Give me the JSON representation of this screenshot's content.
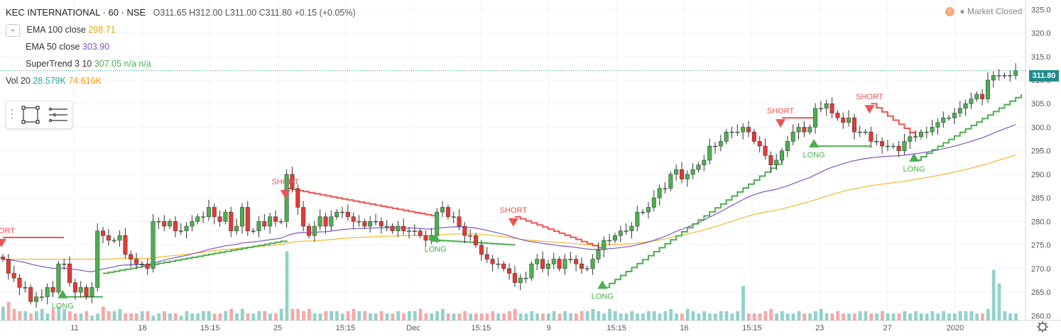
{
  "header": {
    "symbol": "KEC INTERNATIONAL · 60 · NSE",
    "ohlc": {
      "open": "O311.65",
      "high": "H312.00",
      "low": "L311.00",
      "close": "C311.80",
      "change": "+0.15 (+0.05%)"
    }
  },
  "indicators": [
    {
      "label": "EMA 100 close",
      "value": "298.71",
      "color": "#e8b73f"
    },
    {
      "label": "EMA 50 close",
      "value": "303.90",
      "color": "#7e57c2"
    },
    {
      "label": "SuperTrend 3 10",
      "value": "307.05 n/a n/a",
      "color": "#4caf50"
    },
    {
      "label": "Vol 20",
      "value": "28.579K",
      "value2": "74.616K",
      "color": "#26a69a",
      "color2": "#ff9800"
    }
  ],
  "market_status": "Market Closed",
  "last_price_label": "311.80",
  "icons": [
    "chevron-down-icon",
    "rectangle-tool-icon",
    "menu-lines-icon",
    "settings-gear-icon",
    "info-icon"
  ],
  "chart_data": {
    "type": "candlestick",
    "title": "KEC INTERNATIONAL · 60 · NSE",
    "ylim": [
      259,
      327
    ],
    "y_ticks": [
      260,
      265,
      270,
      275,
      280,
      285,
      290,
      295,
      300,
      305,
      310,
      315,
      320,
      325
    ],
    "x_ticks": [
      "11",
      "18",
      "15:15",
      "25",
      "15:15",
      "Dec",
      "15:15",
      "9",
      "15:15",
      "16",
      "15:15",
      "23",
      "27",
      "2020"
    ],
    "colors": {
      "up": "#4caf50",
      "down": "#e53935",
      "supertrend_up": "#4caf50",
      "supertrend_down": "#ef5350",
      "ema100": "#f5b82e",
      "ema50": "#7e57c2"
    },
    "closes": [
      272,
      269,
      268,
      266,
      266,
      263,
      264,
      264,
      266,
      265,
      271,
      271,
      267,
      265,
      266,
      264,
      266,
      278,
      277,
      276,
      276,
      277,
      273,
      272,
      271,
      271,
      270,
      280,
      280,
      279,
      280,
      278,
      278,
      279,
      280,
      281,
      281,
      283,
      281,
      280,
      282,
      278,
      279,
      283,
      278,
      278,
      280,
      279,
      281,
      280,
      280,
      290,
      287,
      283,
      279,
      277,
      279,
      281,
      279,
      281,
      282,
      282,
      281,
      280,
      280,
      279,
      280,
      280,
      279,
      279,
      278,
      279,
      278,
      278,
      278,
      277,
      276,
      277,
      282,
      283,
      281,
      281,
      279,
      277,
      277,
      275,
      273,
      272,
      271,
      271,
      270,
      269,
      267,
      268,
      268,
      271,
      272,
      270,
      271,
      272,
      270,
      272,
      272,
      271,
      270,
      270,
      272,
      274,
      276,
      276,
      277,
      278,
      278,
      279,
      282,
      282,
      283,
      285,
      287,
      287,
      290,
      291,
      289,
      290,
      291,
      292,
      293,
      296,
      296,
      297,
      299,
      299,
      299,
      300,
      299,
      297,
      296,
      294,
      292,
      293,
      295,
      297,
      299,
      300,
      299,
      300,
      304,
      304,
      305,
      303,
      302,
      301,
      302,
      299,
      299,
      299,
      297,
      297,
      296,
      296,
      296,
      295,
      297,
      298,
      298,
      299,
      299,
      300,
      301,
      302,
      302,
      303,
      304,
      305,
      306,
      307,
      306,
      310,
      311,
      311,
      311,
      311,
      312
    ],
    "volumes": [
      6,
      8,
      5,
      4,
      4,
      3,
      4,
      5,
      3,
      5,
      6,
      5,
      4,
      3,
      3,
      4,
      2,
      3,
      6,
      4,
      4,
      5,
      3,
      3,
      3,
      4,
      4,
      2,
      3,
      4,
      3,
      3,
      2,
      4,
      3,
      3,
      4,
      4,
      3,
      3,
      4,
      5,
      3,
      5,
      3,
      3,
      4,
      4,
      3,
      3,
      5,
      30,
      5,
      5,
      4,
      5,
      3,
      3,
      4,
      4,
      4,
      3,
      4,
      5,
      4,
      4,
      3,
      3,
      4,
      3,
      3,
      4,
      3,
      4,
      4,
      5,
      3,
      3,
      4,
      5,
      3,
      3,
      3,
      4,
      3,
      3,
      3,
      3,
      4,
      3,
      3,
      4,
      5,
      3,
      3,
      4,
      3,
      3,
      3,
      4,
      3,
      4,
      3,
      3,
      4,
      4,
      5,
      4,
      3,
      5,
      4,
      3,
      3,
      4,
      3,
      3,
      4,
      4,
      3,
      4,
      5,
      3,
      3,
      5,
      4,
      3,
      4,
      3,
      3,
      4,
      4,
      3,
      4,
      15,
      3,
      3,
      3,
      4,
      5,
      3,
      4,
      3,
      3,
      4,
      3,
      3,
      4,
      5,
      3,
      3,
      4,
      3,
      3,
      3,
      4,
      4,
      3,
      3,
      4,
      3,
      3,
      3,
      4,
      3,
      4,
      3,
      3,
      4,
      3,
      4,
      3,
      3,
      4,
      4,
      4,
      3,
      3,
      5,
      22,
      16,
      4,
      3,
      3
    ],
    "supertrend": [
      {
        "x": [
          0,
          11
        ],
        "y": [
          276.6,
          276.6
        ],
        "dir": "down"
      },
      {
        "x": [
          11,
          18
        ],
        "y": [
          264,
          264
        ],
        "dir": "up"
      },
      {
        "x": [
          18,
          51
        ],
        "y": [
          269,
          276
        ],
        "dir": "up"
      },
      {
        "x": [
          51,
          78
        ],
        "y": [
          287,
          281
        ],
        "dir": "down"
      },
      {
        "x": [
          78,
          92
        ],
        "y": [
          276,
          275
        ],
        "dir": "up"
      },
      {
        "x": [
          92,
          108
        ],
        "y": [
          281,
          274
        ],
        "dir": "down"
      },
      {
        "x": [
          108,
          140
        ],
        "y": [
          266,
          293
        ],
        "dir": "up"
      },
      {
        "x": [
          140,
          146
        ],
        "y": [
          302,
          302
        ],
        "dir": "down"
      },
      {
        "x": [
          146,
          156
        ],
        "y": [
          296,
          296
        ],
        "dir": "up"
      },
      {
        "x": [
          156,
          164
        ],
        "y": [
          305,
          298
        ],
        "dir": "down"
      },
      {
        "x": [
          164,
          183
        ],
        "y": [
          293,
          307
        ],
        "dir": "up"
      }
    ],
    "signals": [
      {
        "text": "SHORT",
        "bar": 0,
        "type": "short"
      },
      {
        "text": "LONG",
        "bar": 11,
        "type": "long"
      },
      {
        "text": "SHORT",
        "bar": 51,
        "type": "short"
      },
      {
        "text": "LONG",
        "bar": 78,
        "type": "long"
      },
      {
        "text": "SHORT",
        "bar": 92,
        "type": "short"
      },
      {
        "text": "LONG",
        "bar": 108,
        "type": "long"
      },
      {
        "text": "SHORT",
        "bar": 140,
        "type": "short"
      },
      {
        "text": "LONG",
        "bar": 146,
        "type": "long"
      },
      {
        "text": "SHORT",
        "bar": 156,
        "type": "short"
      },
      {
        "text": "LONG",
        "bar": 164,
        "type": "long"
      }
    ]
  }
}
